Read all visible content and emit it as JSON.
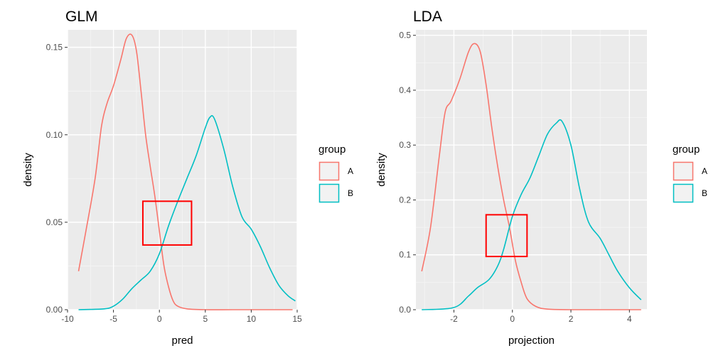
{
  "chart_data": [
    {
      "type": "line",
      "subtype": "density",
      "title": "GLM",
      "xlabel": "pred",
      "ylabel": "density",
      "xlim": [
        -10,
        15
      ],
      "ylim": [
        0,
        0.16
      ],
      "xticks": [
        -10,
        -5,
        0,
        5,
        10,
        15
      ],
      "yticks": [
        0.0,
        0.05,
        0.1,
        0.15
      ],
      "xtick_labels": [
        "-10",
        "-5",
        "0",
        "5",
        "10",
        "15"
      ],
      "ytick_labels": [
        "0.00",
        "0.05",
        "0.10",
        "0.15"
      ],
      "grid": true,
      "legend": {
        "title": "group",
        "placement": "right",
        "entries": [
          "A",
          "B"
        ]
      },
      "series": [
        {
          "name": "A",
          "color": "#f8766d",
          "x": [
            -8.8,
            -8.0,
            -7.0,
            -6.3,
            -5.7,
            -5.0,
            -4.2,
            -3.6,
            -3.0,
            -2.5,
            -2.0,
            -1.5,
            -1.0,
            -0.5,
            0.0,
            0.5,
            1.0,
            1.5,
            2.0,
            3.0,
            5.0,
            8.0,
            11.0,
            14.5
          ],
          "y": [
            0.022,
            0.045,
            0.075,
            0.105,
            0.118,
            0.128,
            0.143,
            0.155,
            0.157,
            0.148,
            0.125,
            0.1,
            0.082,
            0.065,
            0.045,
            0.025,
            0.013,
            0.005,
            0.002,
            0.0005,
            0.0,
            0.0,
            0.0,
            0.0
          ]
        },
        {
          "name": "B",
          "color": "#00bfc4",
          "x": [
            -8.8,
            -6.0,
            -5.0,
            -4.0,
            -3.0,
            -2.0,
            -1.0,
            0.0,
            1.0,
            2.0,
            3.0,
            4.0,
            5.0,
            5.5,
            6.0,
            7.0,
            8.0,
            9.0,
            10.0,
            11.0,
            12.0,
            13.0,
            14.0,
            14.8
          ],
          "y": [
            0.0,
            0.0005,
            0.002,
            0.006,
            0.012,
            0.017,
            0.022,
            0.032,
            0.048,
            0.062,
            0.075,
            0.088,
            0.104,
            0.11,
            0.109,
            0.092,
            0.07,
            0.053,
            0.046,
            0.036,
            0.024,
            0.014,
            0.008,
            0.005
          ]
        }
      ],
      "annotation": {
        "type": "rect",
        "color": "#ff0000",
        "x": [
          -1.8,
          3.5
        ],
        "y": [
          0.037,
          0.062
        ]
      }
    },
    {
      "type": "line",
      "subtype": "density",
      "title": "LDA",
      "xlabel": "projection",
      "ylabel": "density",
      "xlim": [
        -3.3,
        4.6
      ],
      "ylim": [
        0,
        0.51
      ],
      "xticks": [
        -2,
        0,
        2,
        4
      ],
      "yticks": [
        0.0,
        0.1,
        0.2,
        0.3,
        0.4,
        0.5
      ],
      "xtick_labels": [
        "-2",
        "0",
        "2",
        "4"
      ],
      "ytick_labels": [
        "0.0",
        "0.1",
        "0.2",
        "0.3",
        "0.4",
        "0.5"
      ],
      "grid": true,
      "legend": {
        "title": "group",
        "placement": "right",
        "entries": [
          "A",
          "B"
        ]
      },
      "series": [
        {
          "name": "A",
          "color": "#f8766d",
          "x": [
            -3.1,
            -2.8,
            -2.5,
            -2.3,
            -2.1,
            -1.8,
            -1.5,
            -1.3,
            -1.1,
            -0.9,
            -0.7,
            -0.5,
            -0.3,
            -0.1,
            0.1,
            0.3,
            0.5,
            0.8,
            1.2,
            2.0,
            3.0,
            4.4
          ],
          "y": [
            0.07,
            0.15,
            0.28,
            0.36,
            0.38,
            0.42,
            0.47,
            0.485,
            0.47,
            0.41,
            0.33,
            0.26,
            0.2,
            0.15,
            0.09,
            0.05,
            0.02,
            0.006,
            0.001,
            0.0,
            0.0,
            0.0
          ]
        },
        {
          "name": "B",
          "color": "#00bfc4",
          "x": [
            -3.1,
            -2.0,
            -1.5,
            -1.2,
            -0.8,
            -0.5,
            -0.3,
            0.0,
            0.3,
            0.6,
            0.9,
            1.2,
            1.5,
            1.7,
            2.0,
            2.3,
            2.6,
            3.0,
            3.3,
            3.6,
            4.0,
            4.4
          ],
          "y": [
            0.0,
            0.004,
            0.025,
            0.04,
            0.055,
            0.08,
            0.11,
            0.17,
            0.21,
            0.24,
            0.28,
            0.32,
            0.34,
            0.343,
            0.3,
            0.22,
            0.16,
            0.13,
            0.1,
            0.07,
            0.04,
            0.018
          ]
        }
      ],
      "annotation": {
        "type": "rect",
        "color": "#ff0000",
        "x": [
          -0.9,
          0.5
        ],
        "y": [
          0.097,
          0.173
        ]
      }
    }
  ]
}
